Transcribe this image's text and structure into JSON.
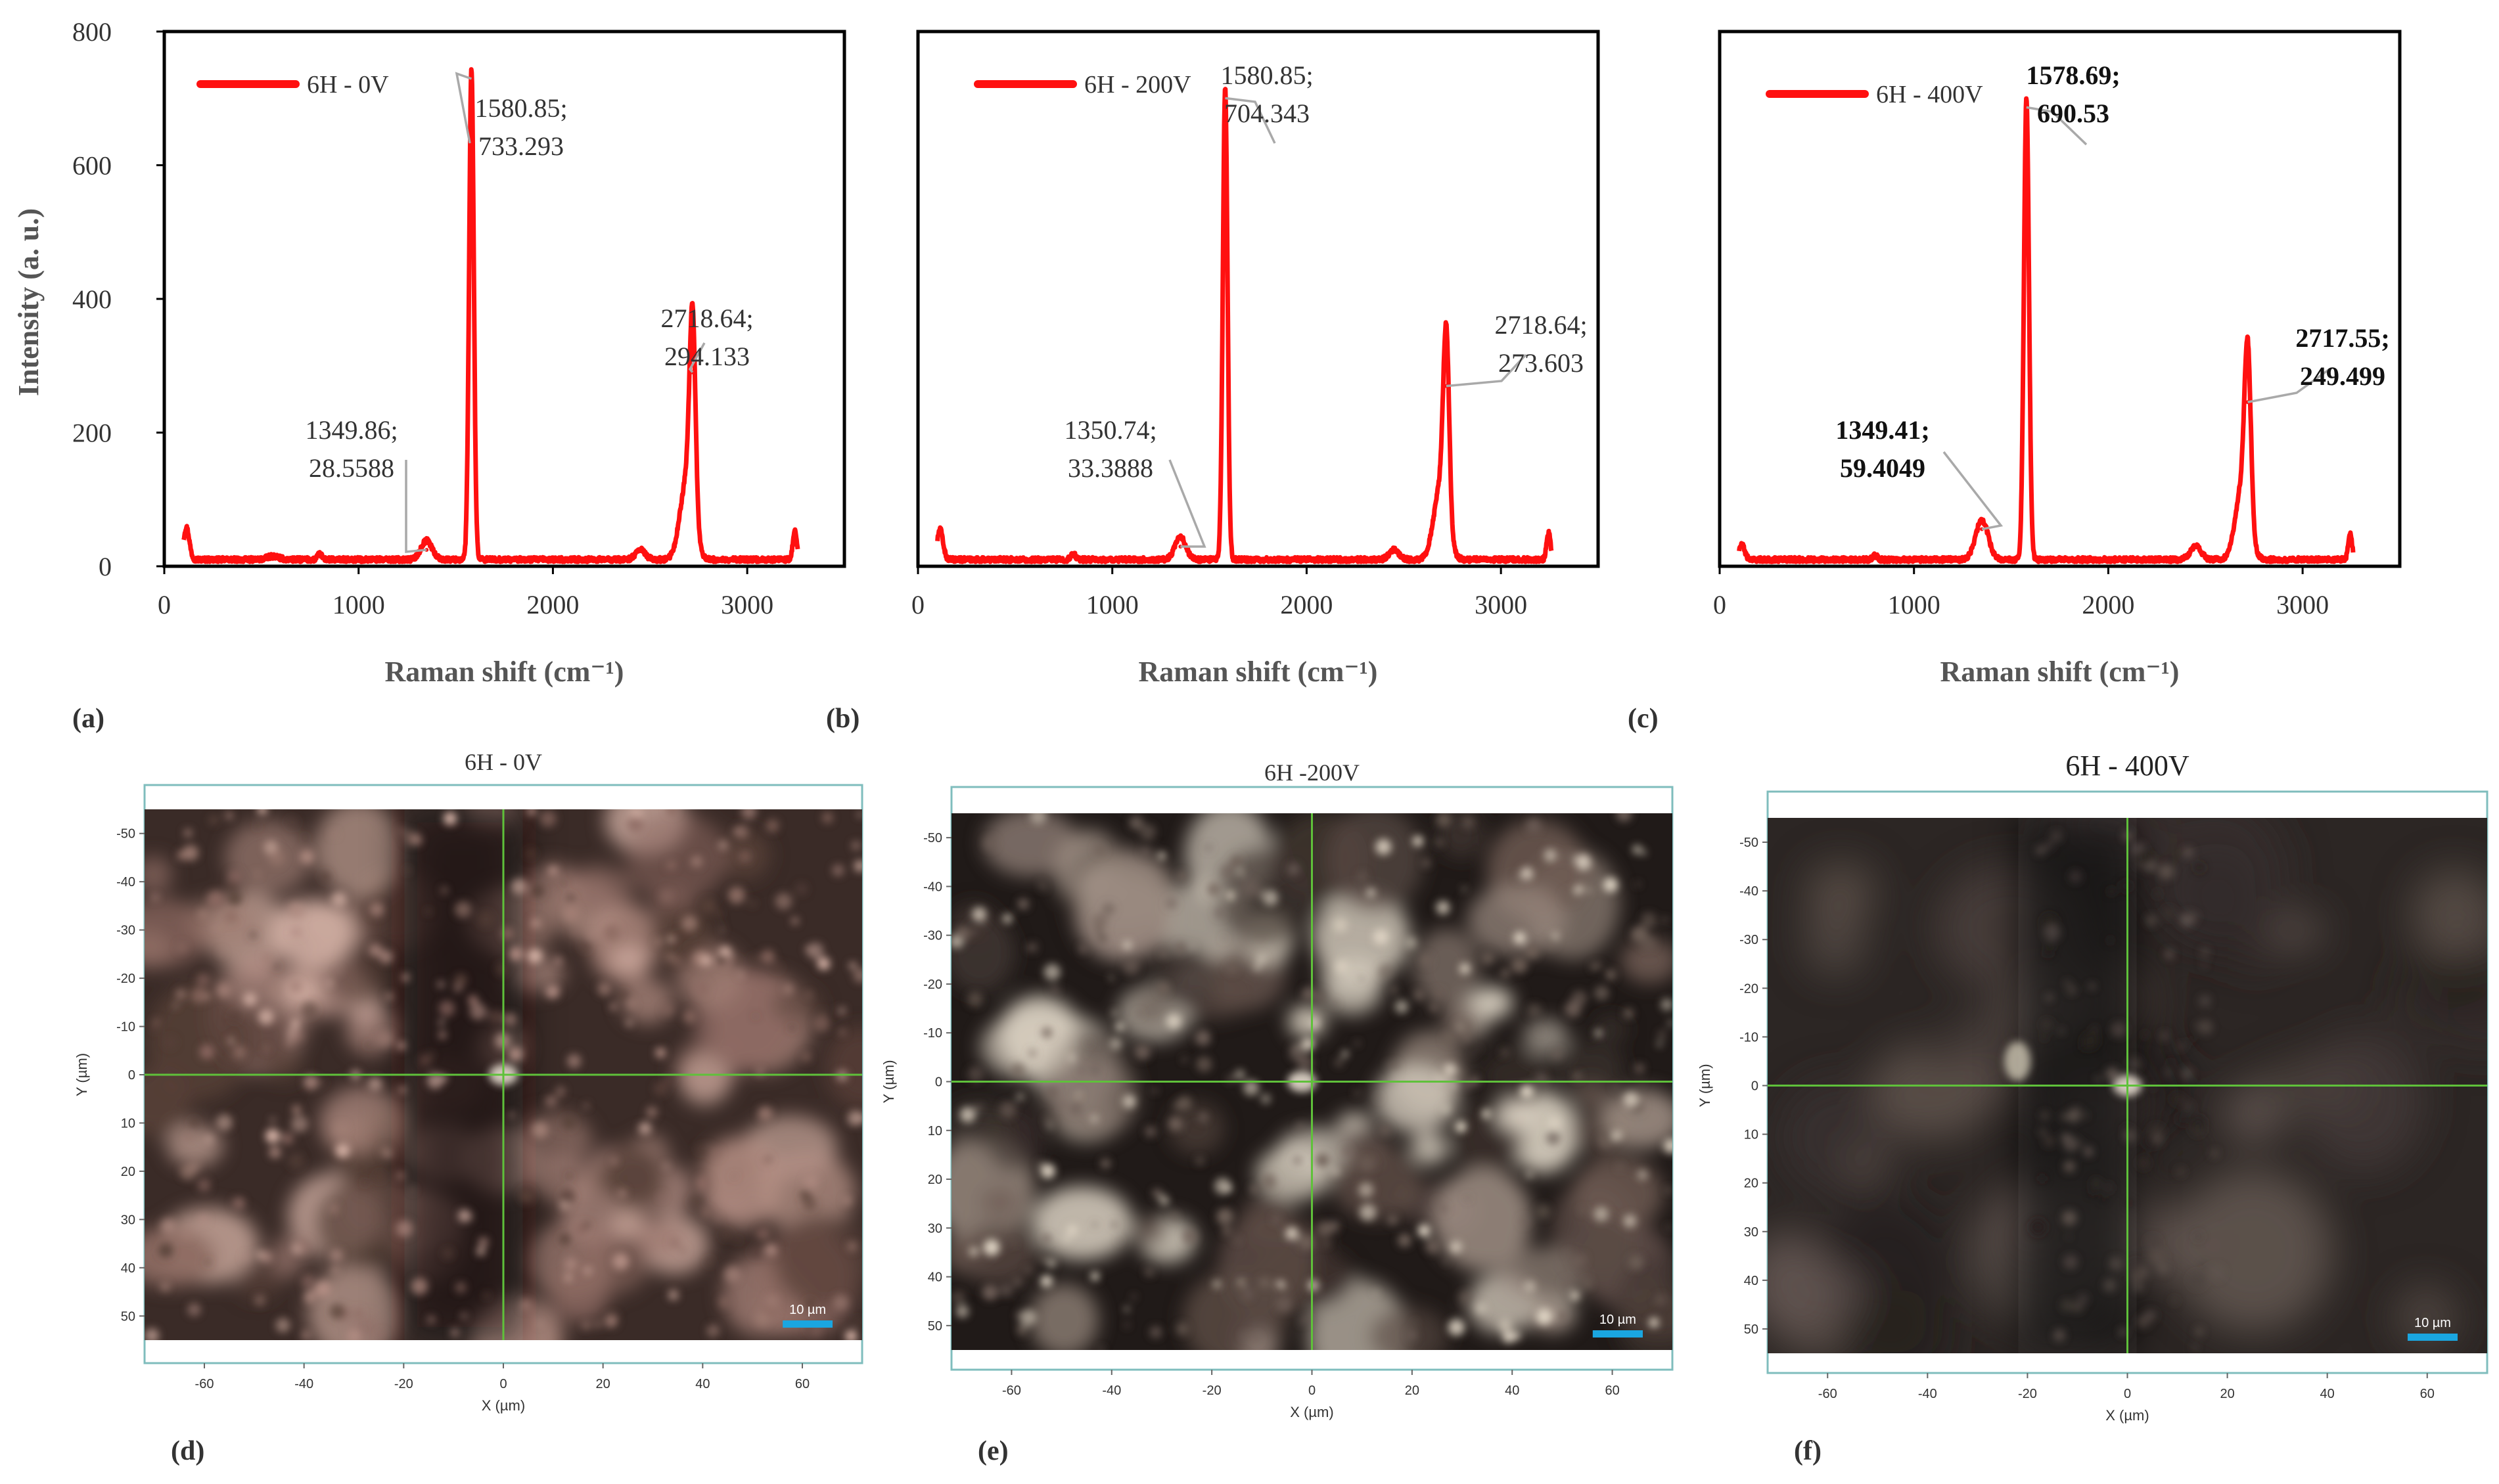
{
  "colors": {
    "spectrum": "#ff1010",
    "leader": "#a9a9a9",
    "crosshair": "#5fc13a",
    "scale_bar": "#1aa6e0",
    "frame": "#7fbdbd"
  },
  "chart_data": [
    {
      "type": "line",
      "panel": "(a)",
      "legend": "6H - 0V",
      "xlabel": "Raman shift (cm⁻¹)",
      "ylabel": "Intensity (a. u.)",
      "xlim": [
        0,
        3500
      ],
      "ylim": [
        0,
        800
      ],
      "x_ticks": [
        "0",
        "1000",
        "2000",
        "3000"
      ],
      "y_ticks": [
        "0",
        "200",
        "400",
        "600",
        "800"
      ],
      "bold_labels": false,
      "peaks": [
        {
          "x": 114,
          "y": 48,
          "w": 15,
          "labeled": false
        },
        {
          "x": 560,
          "y": 5,
          "w": 30,
          "labeled": false
        },
        {
          "x": 800,
          "y": 8,
          "w": 12,
          "labeled": false
        },
        {
          "x": 1349.86,
          "y": 28.5588,
          "w": 28,
          "labeled": true,
          "line1": "1349.86;",
          "line2": "28.5588"
        },
        {
          "x": 1580.85,
          "y": 733.293,
          "w": 12,
          "labeled": true,
          "line1": "1580.85;",
          "line2": "733.293"
        },
        {
          "x": 2450,
          "y": 15,
          "w": 25,
          "labeled": false
        },
        {
          "x": 2690,
          "y": 120,
          "w": 35,
          "labeled": false
        },
        {
          "x": 2718.64,
          "y": 294.133,
          "w": 15,
          "labeled": true,
          "line1": "2718.64;",
          "line2": "294.133"
        },
        {
          "x": 3245,
          "y": 42,
          "w": 10,
          "labeled": false
        }
      ]
    },
    {
      "type": "line",
      "panel": "(b)",
      "legend": "6H - 200V",
      "xlabel": "Raman shift (cm⁻¹)",
      "xlim": [
        0,
        3500
      ],
      "ylim": [
        0,
        800
      ],
      "x_ticks": [
        "0",
        "1000",
        "2000",
        "3000"
      ],
      "bold_labels": false,
      "peaks": [
        {
          "x": 114,
          "y": 45,
          "w": 15,
          "labeled": false
        },
        {
          "x": 800,
          "y": 8,
          "w": 12,
          "labeled": false
        },
        {
          "x": 1350.74,
          "y": 33.3888,
          "w": 28,
          "labeled": true,
          "line1": "1350.74;",
          "line2": "33.3888"
        },
        {
          "x": 1580.85,
          "y": 704.343,
          "w": 12,
          "labeled": true,
          "line1": "1580.85;",
          "line2": "704.343"
        },
        {
          "x": 2450,
          "y": 15,
          "w": 25,
          "labeled": false
        },
        {
          "x": 2690,
          "y": 110,
          "w": 35,
          "labeled": false
        },
        {
          "x": 2718.64,
          "y": 273.603,
          "w": 15,
          "labeled": true,
          "line1": "2718.64;",
          "line2": "273.603"
        },
        {
          "x": 3245,
          "y": 40,
          "w": 10,
          "labeled": false
        }
      ]
    },
    {
      "type": "line",
      "panel": "(c)",
      "legend": "6H - 400V",
      "xlabel": "Raman shift (cm⁻¹)",
      "xlim": [
        0,
        3500
      ],
      "ylim": [
        0,
        800
      ],
      "x_ticks": [
        "0",
        "1000",
        "2000",
        "3000"
      ],
      "bold_labels": true,
      "peaks": [
        {
          "x": 114,
          "y": 22,
          "w": 15,
          "labeled": false
        },
        {
          "x": 800,
          "y": 6,
          "w": 12,
          "labeled": false
        },
        {
          "x": 1349.41,
          "y": 59.4049,
          "w": 32,
          "labeled": true,
          "line1": "1349.41;",
          "line2": "59.4049"
        },
        {
          "x": 1578.69,
          "y": 690.53,
          "w": 13,
          "labeled": true,
          "line1": "1578.69;",
          "line2": "690.53"
        },
        {
          "x": 2450,
          "y": 20,
          "w": 28,
          "labeled": false
        },
        {
          "x": 2690,
          "y": 110,
          "w": 35,
          "labeled": false
        },
        {
          "x": 2717.55,
          "y": 249.499,
          "w": 16,
          "labeled": true,
          "line1": "2717.55;",
          "line2": "249.499"
        },
        {
          "x": 3245,
          "y": 38,
          "w": 10,
          "labeled": false
        }
      ]
    }
  ],
  "micrographs": [
    {
      "panel": "(d)",
      "title": "6H - 0V",
      "xlabel": "X (µm)",
      "ylabel": "Y (µm)",
      "xlim": [
        -72,
        72
      ],
      "ylim": [
        -55,
        55
      ],
      "x_ticks": [
        "-60",
        "-40",
        "-20",
        "0",
        "20",
        "40",
        "60"
      ],
      "y_ticks": [
        "-50",
        "-40",
        "-30",
        "-20",
        "-10",
        "0",
        "10",
        "20",
        "30",
        "40",
        "50"
      ],
      "scale_bar": "10 µm",
      "tone": "warm"
    },
    {
      "panel": "(e)",
      "title": "6H -200V",
      "xlabel": "X (µm)",
      "ylabel": "Y (µm)",
      "xlim": [
        -72,
        72
      ],
      "ylim": [
        -55,
        55
      ],
      "x_ticks": [
        "-60",
        "-40",
        "-20",
        "0",
        "20",
        "40",
        "60"
      ],
      "y_ticks": [
        "-50",
        "-40",
        "-30",
        "-20",
        "-10",
        "0",
        "10",
        "20",
        "30",
        "40",
        "50"
      ],
      "scale_bar": "10 µm",
      "tone": "dark"
    },
    {
      "panel": "(f)",
      "title": "6H - 400V",
      "xlabel": "X (µm)",
      "ylabel": "Y (µm)",
      "xlim": [
        -72,
        72
      ],
      "ylim": [
        -55,
        55
      ],
      "x_ticks": [
        "-60",
        "-40",
        "-20",
        "0",
        "20",
        "40",
        "60"
      ],
      "y_ticks": [
        "-50",
        "-40",
        "-30",
        "-20",
        "-10",
        "0",
        "10",
        "20",
        "30",
        "40",
        "50"
      ],
      "scale_bar": "10 µm",
      "tone": "blurred"
    }
  ]
}
